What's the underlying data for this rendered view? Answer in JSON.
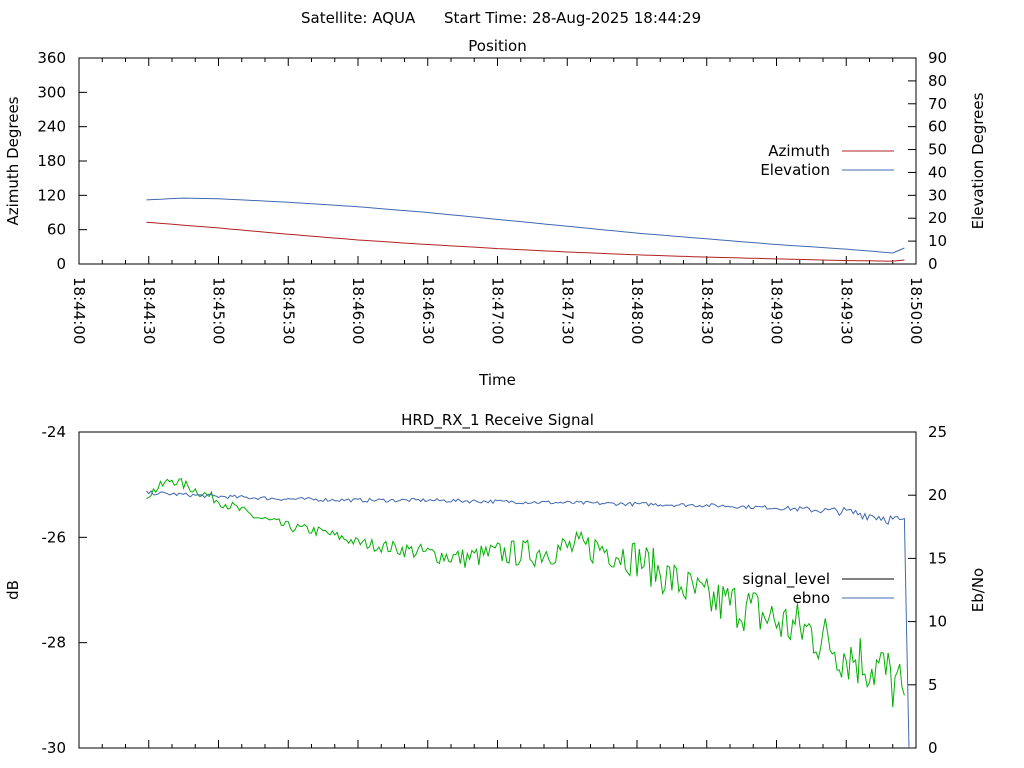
{
  "header": {
    "satellite_label": "Satellite: AQUA",
    "start_time_label": "Start Time: 28-Aug-2025 18:44:29"
  },
  "chart_data": [
    {
      "type": "line",
      "title": "Position",
      "xlabel": "Time",
      "ylabel_left": "Azimuth Degrees",
      "ylabel_right": "Elevation Degrees",
      "x_ticks": [
        "18:44:00",
        "18:44:30",
        "18:45:00",
        "18:45:30",
        "18:46:00",
        "18:46:30",
        "18:47:00",
        "18:47:30",
        "18:48:00",
        "18:48:30",
        "18:49:00",
        "18:49:30",
        "18:50:00"
      ],
      "y_left_ticks": [
        "0",
        "60",
        "120",
        "180",
        "240",
        "300",
        "360"
      ],
      "y_right_ticks": [
        "0",
        "10",
        "20",
        "30",
        "40",
        "50",
        "60",
        "70",
        "80",
        "90"
      ],
      "ylim_left": [
        0,
        360
      ],
      "ylim_right": [
        0,
        90
      ],
      "legend_position": "right",
      "series": [
        {
          "name": "Azimuth",
          "axis": "left",
          "color": "#b22222",
          "x": [
            "18:44:29",
            "18:45:00",
            "18:45:30",
            "18:46:00",
            "18:46:30",
            "18:47:00",
            "18:47:30",
            "18:48:00",
            "18:48:30",
            "18:49:00",
            "18:49:30",
            "18:49:50",
            "18:49:55"
          ],
          "values": [
            73,
            63,
            52,
            42,
            34,
            27,
            21,
            16,
            12,
            9,
            6,
            5,
            7
          ]
        },
        {
          "name": "Elevation",
          "axis": "right",
          "color": "#4169b0",
          "x": [
            "18:44:29",
            "18:44:45",
            "18:45:00",
            "18:45:30",
            "18:46:00",
            "18:46:30",
            "18:47:00",
            "18:47:30",
            "18:48:00",
            "18:48:30",
            "18:49:00",
            "18:49:30",
            "18:49:50",
            "18:49:55"
          ],
          "values": [
            28,
            28.8,
            28.5,
            27,
            25,
            22.5,
            19.5,
            16.5,
            13.5,
            11,
            8.5,
            6.5,
            4.8,
            7
          ]
        }
      ]
    },
    {
      "type": "line",
      "title": "HRD_RX_1 Receive Signal",
      "xlabel": "",
      "ylabel_left": "dB",
      "ylabel_right": "Eb/No",
      "y_left_ticks": [
        "-24",
        "-26",
        "-28",
        "-30"
      ],
      "y_right_ticks": [
        "0",
        "5",
        "10",
        "15",
        "20",
        "25"
      ],
      "ylim_left": [
        -30,
        -24
      ],
      "ylim_right": [
        0,
        25
      ],
      "legend_position": "right",
      "legend_entries": [
        {
          "name": "signal_level",
          "color": "#000000"
        },
        {
          "name": "ebno",
          "color": "#4169b0"
        }
      ],
      "series": [
        {
          "name": "signal_level",
          "axis": "left",
          "color": "#00b000",
          "x": [
            "18:44:29",
            "18:44:40",
            "18:45:00",
            "18:45:15",
            "18:45:30",
            "18:45:45",
            "18:46:00",
            "18:46:15",
            "18:46:30",
            "18:46:45",
            "18:47:00",
            "18:47:15",
            "18:47:30",
            "18:47:45",
            "18:48:00",
            "18:48:15",
            "18:48:30",
            "18:48:45",
            "18:49:00",
            "18:49:15",
            "18:49:30",
            "18:49:45",
            "18:49:55"
          ],
          "values": [
            -25.2,
            -24.9,
            -25.3,
            -25.6,
            -25.8,
            -25.9,
            -26.1,
            -26.2,
            -26.3,
            -26.4,
            -26.3,
            -26.3,
            -26.2,
            -26.2,
            -26.4,
            -26.8,
            -27.2,
            -27.3,
            -27.6,
            -27.8,
            -28.2,
            -28.5,
            -29.0
          ]
        },
        {
          "name": "ebno",
          "axis": "right",
          "color": "#4169b0",
          "x": [
            "18:44:29",
            "18:45:00",
            "18:45:30",
            "18:46:00",
            "18:46:30",
            "18:47:00",
            "18:47:30",
            "18:48:00",
            "18:48:30",
            "18:49:00",
            "18:49:30",
            "18:49:45",
            "18:49:55",
            "18:49:57"
          ],
          "values": [
            20.2,
            19.9,
            19.7,
            19.6,
            19.6,
            19.5,
            19.4,
            19.3,
            19.2,
            19.0,
            18.7,
            18.3,
            17.8,
            0
          ]
        }
      ]
    }
  ]
}
